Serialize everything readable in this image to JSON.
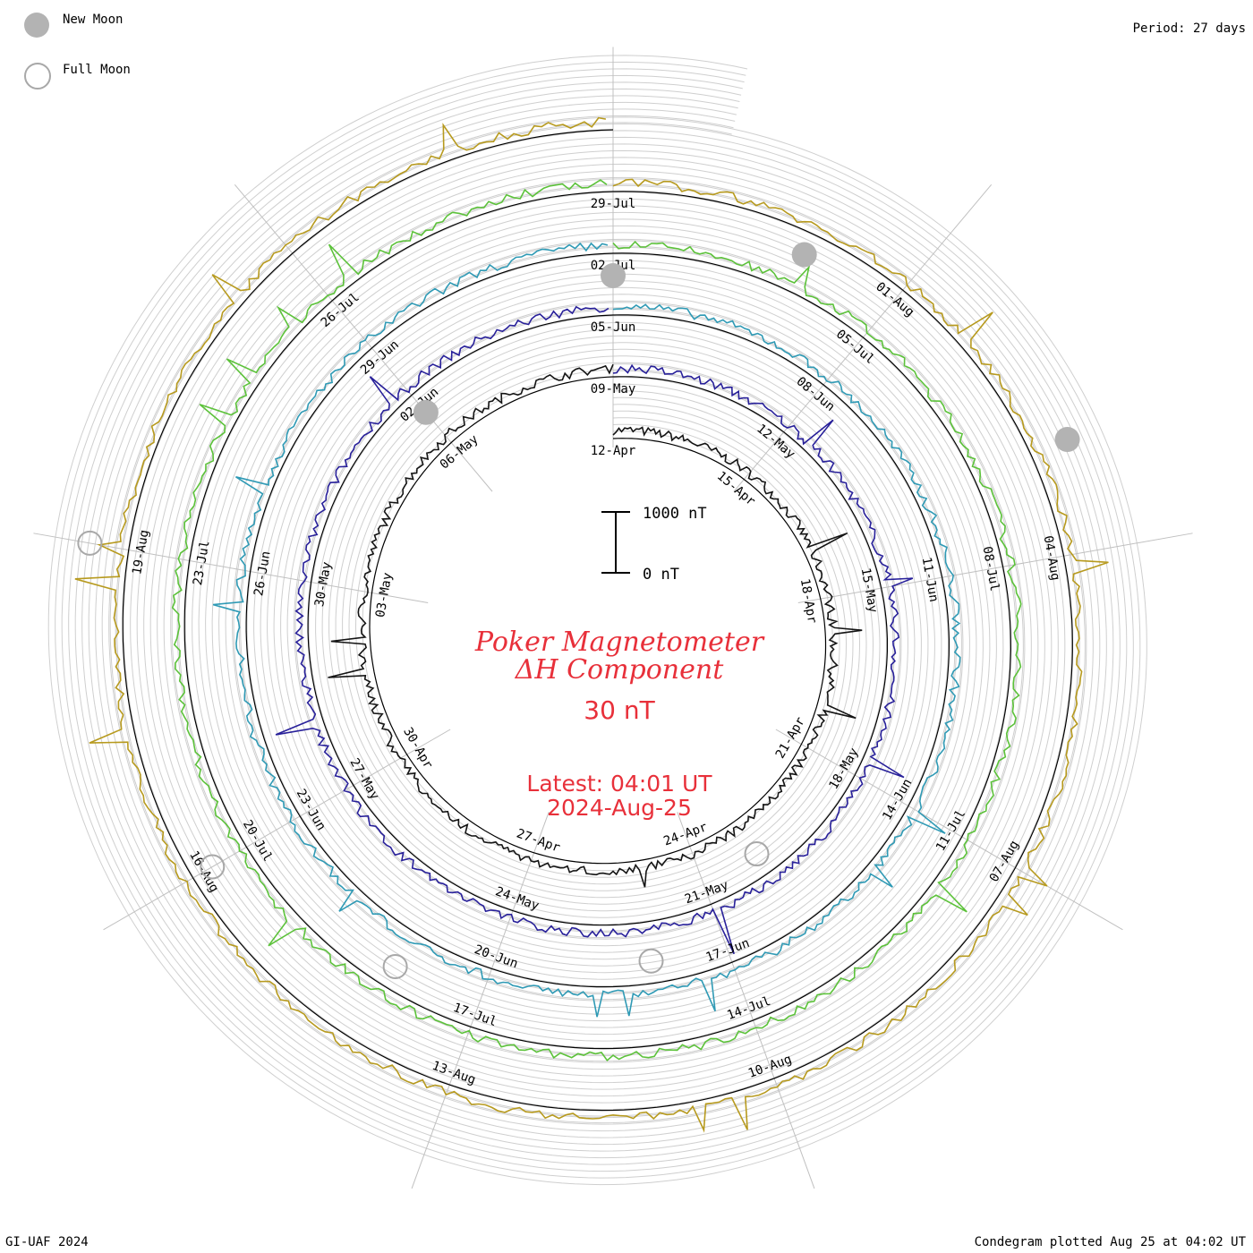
{
  "legend": {
    "new_moon": "New Moon",
    "full_moon": "Full Moon"
  },
  "period": "Period: 27 days",
  "footer": {
    "credit": "GI-UAF 2024",
    "plotted": "Condegram plotted Aug 25 at 04:02 UT"
  },
  "colors": {
    "title": "#e8303a",
    "new_moon": "#b3b3b3",
    "full_moon": "#a8a8a8",
    "grid": "#c8c8c8",
    "baseline": "#000000"
  },
  "chart_data": {
    "type": "line",
    "title": "Poker Magnetometer",
    "subtitle": "ΔH Component",
    "scale": "30 nT",
    "latest_time": "Latest: 04:01 UT",
    "latest_date": "2024-Aug-25",
    "scale_bar": {
      "top_label": "1000 nT",
      "bottom_label": "0 nT"
    },
    "series": [
      {
        "color": "#141414",
        "labels": [
          "12-Apr",
          "15-Apr",
          "18-Apr",
          "21-Apr",
          "24-Apr",
          "27-Apr",
          "30-Apr",
          "03-May",
          "06-May"
        ]
      },
      {
        "color": "#28209a",
        "labels": [
          "09-May",
          "12-May",
          "15-May",
          "18-May",
          "21-May",
          "24-May",
          "27-May",
          "30-May",
          "02-Jun"
        ]
      },
      {
        "color": "#2f9ab5",
        "labels": [
          "05-Jun",
          "08-Jun",
          "11-Jun",
          "14-Jun",
          "17-Jun",
          "20-Jun",
          "23-Jun",
          "26-Jun",
          "29-Jun"
        ]
      },
      {
        "color": "#5cc23a",
        "labels": [
          "02-Jul",
          "05-Jul",
          "08-Jul",
          "11-Jul",
          "14-Jul",
          "17-Jul",
          "20-Jul",
          "23-Jul",
          "26-Jul"
        ]
      },
      {
        "color": "#b79a1e",
        "labels": [
          "29-Jul",
          "01-Aug",
          "04-Aug",
          "07-Aug",
          "10-Aug",
          "13-Aug",
          "16-Aug",
          "19-Aug"
        ]
      },
      {
        "color": "#b82a12",
        "labels": []
      }
    ],
    "new_moons": [
      "06-May",
      "05-Jun",
      "04-Jul",
      "03-Aug"
    ],
    "full_moons": [
      "23-Apr",
      "22-May",
      "21-Jun",
      "20-Jul",
      "19-Aug"
    ]
  }
}
